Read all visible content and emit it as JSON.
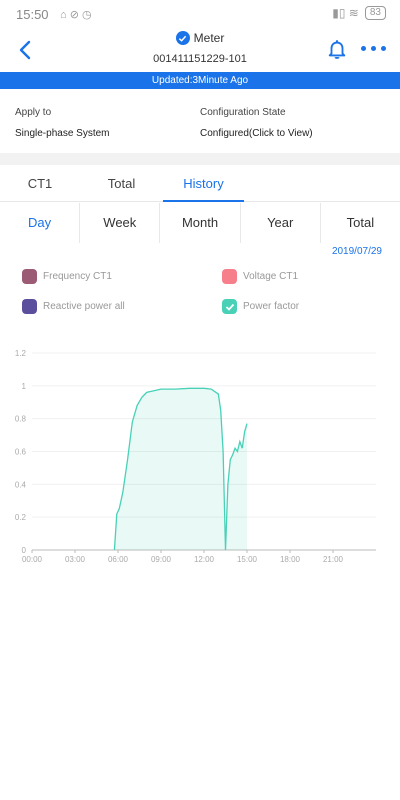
{
  "statusbar": {
    "time": "15:50",
    "battery": "83",
    "left_icons": "⌂ ⊘ ◷",
    "right_icons": "▮▯ ≋"
  },
  "header": {
    "title": "Meter",
    "serial": "001411151229-101"
  },
  "update_bar": {
    "text": "Updated:3Minute Ago"
  },
  "info": {
    "apply_label": "Apply to",
    "apply_value": "Single-phase System",
    "config_label": "Configuration State",
    "config_value": "Configured(Click to View)"
  },
  "tabs": [
    {
      "label": "CT1"
    },
    {
      "label": "Total"
    },
    {
      "label": "History"
    }
  ],
  "periods": [
    {
      "label": "Day"
    },
    {
      "label": "Week"
    },
    {
      "label": "Month"
    },
    {
      "label": "Year"
    },
    {
      "label": "Total"
    }
  ],
  "date": "2019/07/29",
  "legend": [
    {
      "label": "Frequency CT1",
      "color": "#9c5b75",
      "checked": false
    },
    {
      "label": "Voltage CT1",
      "color": "#f77f8b",
      "checked": false
    },
    {
      "label": "Reactive power all",
      "color": "#5b4e9c",
      "checked": false
    },
    {
      "label": "Power factor",
      "color": "#48d1b7",
      "checked": true
    }
  ],
  "chart_data": {
    "type": "area",
    "ylim": [
      0,
      1.2
    ],
    "yticks": [
      "0",
      "0.2",
      "0.4",
      "0.6",
      "0.8",
      "1",
      "1.2"
    ],
    "xticks": [
      "00:00",
      "03:00",
      "06:00",
      "09:00",
      "12:00",
      "15:00",
      "18:00",
      "21:00"
    ],
    "series": [
      {
        "color": "#48d1b7",
        "points": [
          [
            "05:45",
            0
          ],
          [
            "05:55",
            0.22
          ],
          [
            "06:05",
            0.25
          ],
          [
            "06:20",
            0.35
          ],
          [
            "06:40",
            0.55
          ],
          [
            "07:00",
            0.78
          ],
          [
            "07:20",
            0.88
          ],
          [
            "07:40",
            0.93
          ],
          [
            "08:00",
            0.96
          ],
          [
            "08:30",
            0.97
          ],
          [
            "09:00",
            0.98
          ],
          [
            "10:00",
            0.98
          ],
          [
            "11:00",
            0.985
          ],
          [
            "12:00",
            0.985
          ],
          [
            "12:30",
            0.98
          ],
          [
            "13:00",
            0.95
          ],
          [
            "13:10",
            0.85
          ],
          [
            "13:20",
            0.6
          ],
          [
            "13:30",
            0.0
          ],
          [
            "13:40",
            0.4
          ],
          [
            "13:50",
            0.55
          ],
          [
            "14:00",
            0.58
          ],
          [
            "14:10",
            0.62
          ],
          [
            "14:20",
            0.6
          ],
          [
            "14:30",
            0.66
          ],
          [
            "14:40",
            0.62
          ],
          [
            "14:50",
            0.72
          ],
          [
            "15:00",
            0.77
          ]
        ]
      }
    ]
  }
}
